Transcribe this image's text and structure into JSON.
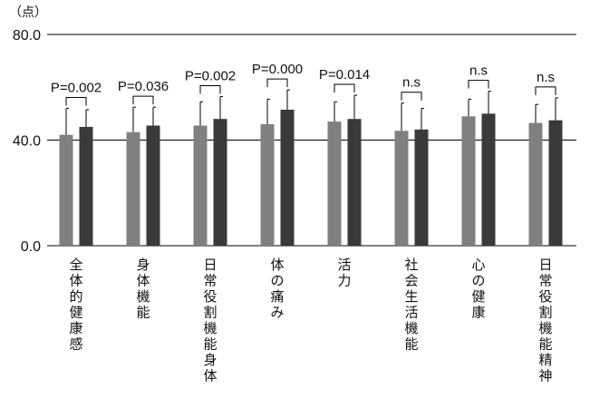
{
  "chart_data": {
    "type": "bar",
    "ylabel": "（点）",
    "ylim": [
      0,
      80
    ],
    "yticks": [
      "0.0",
      "40.0",
      "80.0"
    ],
    "categories": [
      "全体的健康感",
      "身体機能",
      "日常役割機能身体",
      "体の痛み",
      "活力",
      "社会生活機能",
      "心の健康",
      "日常役割機能精神"
    ],
    "series": [
      {
        "values": [
          42,
          43,
          45.5,
          46,
          47,
          43.5,
          49,
          46.5
        ],
        "error": [
          10,
          9.5,
          9,
          9.5,
          7.5,
          10.5,
          6.5,
          7
        ]
      },
      {
        "values": [
          45,
          45.5,
          48,
          51.5,
          48,
          44,
          50,
          47.5
        ],
        "error": [
          6.5,
          7,
          8.5,
          7.5,
          9,
          8,
          8.5,
          8.5
        ]
      }
    ],
    "significance": [
      "P=0.002",
      "P=0.036",
      "P=0.002",
      "P=0.000",
      "P=0.014",
      "n.s",
      "n.s",
      "n.s"
    ],
    "colors": {
      "series1": "#808080",
      "series2": "#3a3a3a",
      "gridline": "#000000"
    },
    "grid": "horizontal"
  }
}
